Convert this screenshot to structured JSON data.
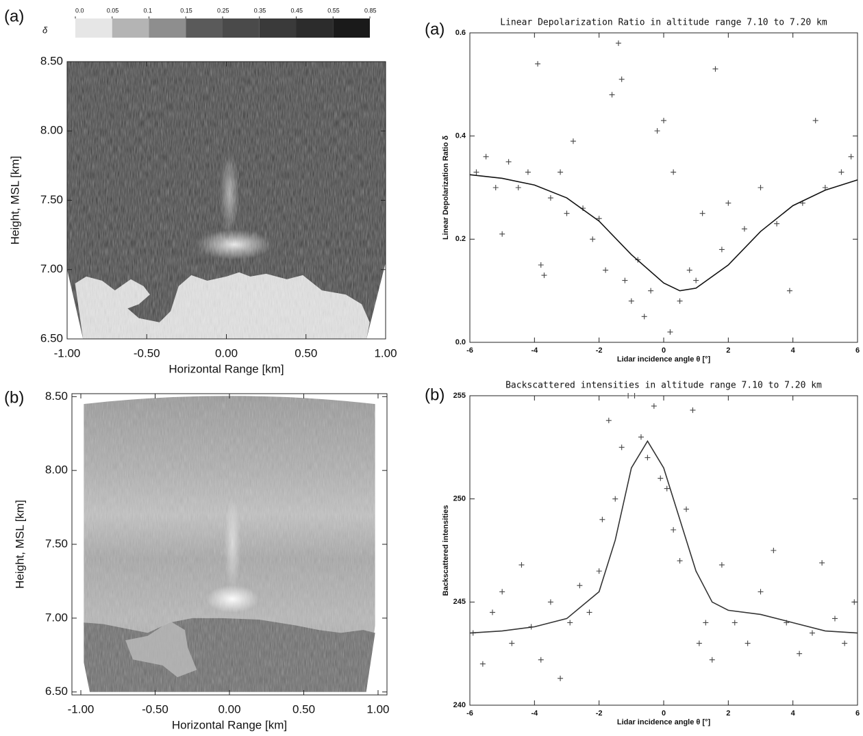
{
  "chart_data": [
    {
      "type": "image",
      "panel_label": "(a)",
      "xlabel": "Horizontal Range [km]",
      "ylabel": "Height, MSL [km]",
      "xlim": [
        -1,
        1
      ],
      "ylim": [
        6.5,
        8.5
      ],
      "xticks": [
        {
          "value": -1,
          "label": "-1.00"
        },
        {
          "value": -0.5,
          "label": "-0.50"
        },
        {
          "value": 0,
          "label": "0.00"
        },
        {
          "value": 0.5,
          "label": "0.50"
        },
        {
          "value": 1,
          "label": "1.00"
        }
      ],
      "yticks": [
        {
          "value": 6.5,
          "label": "6.50"
        },
        {
          "value": 7,
          "label": "7.00"
        },
        {
          "value": 7.5,
          "label": "7.50"
        },
        {
          "value": 8,
          "label": "8.00"
        },
        {
          "value": 8.5,
          "label": "8.50"
        }
      ],
      "colorbar": {
        "label": "δ",
        "ticks": [
          {
            "value": 0,
            "label": "0.0"
          },
          0.05,
          0.1,
          0.15,
          0.25,
          0.35,
          0.45,
          0.55,
          0.85
        ],
        "colors": [
          "#e6e6e6",
          "#b4b4b4",
          "#8e8e8e",
          "#5a5a5a",
          "#4a4a4a",
          "#3a3a3a",
          "#2c2c2c",
          "#1a1a1a"
        ]
      }
    },
    {
      "type": "image",
      "panel_label": "(b)",
      "xlabel": "Horizontal Range [km]",
      "ylabel": "Height, MSL [km]",
      "xlim": [
        -1.06,
        1.06
      ],
      "ylim": [
        6.48,
        8.52
      ],
      "xticks": [
        {
          "value": -1,
          "label": "-1.00"
        },
        {
          "value": -0.5,
          "label": "-0.50"
        },
        {
          "value": 0,
          "label": "0.00"
        },
        {
          "value": 0.5,
          "label": "0.50"
        },
        {
          "value": 1,
          "label": "1.00"
        }
      ],
      "yticks": [
        {
          "value": 6.5,
          "label": "6.50"
        },
        {
          "value": 7,
          "label": "7.00"
        },
        {
          "value": 7.5,
          "label": "7.50"
        },
        {
          "value": 8,
          "label": "8.00"
        },
        {
          "value": 8.5,
          "label": "8.50"
        }
      ]
    },
    {
      "type": "scatter",
      "panel_label": "(a)",
      "title": "Linear Depolarization Ratio in altitude range 7.10 to 7.20 km",
      "xlabel": "Lidar incidence angle  θ [°]",
      "ylabel": "Linear Depolarization Ratio  δ",
      "xlim": [
        -6,
        6
      ],
      "ylim": [
        0,
        0.6
      ],
      "xticks": [
        -6,
        -4,
        -2,
        0,
        2,
        4,
        6
      ],
      "yticks": [
        {
          "value": 0,
          "label": "0.0"
        },
        0.2,
        0.4,
        0.6
      ],
      "series": [
        {
          "style": "markers",
          "color": "#444444",
          "x": [
            -5.8,
            -5.5,
            -5.2,
            -5,
            -4.8,
            -4.5,
            -4.2,
            -3.9,
            -3.8,
            -3.7,
            -3.5,
            -3.2,
            -3,
            -2.8,
            -2.5,
            -2.2,
            -2,
            -1.8,
            -1.6,
            -1.4,
            -1.3,
            -1.2,
            -1,
            -0.8,
            -0.6,
            -0.4,
            -0.2,
            0,
            0.2,
            0.3,
            0.5,
            0.8,
            1,
            1.2,
            1.6,
            1.8,
            2,
            2.5,
            3,
            3.5,
            3.9,
            4.3,
            4.7,
            5,
            5.5,
            5.8
          ],
          "values": [
            0.33,
            0.36,
            0.3,
            0.21,
            0.35,
            0.3,
            0.33,
            0.54,
            0.15,
            0.13,
            0.28,
            0.33,
            0.25,
            0.39,
            0.26,
            0.2,
            0.24,
            0.14,
            0.48,
            0.58,
            0.51,
            0.12,
            0.08,
            0.16,
            0.05,
            0.1,
            0.41,
            0.43,
            0.02,
            0.33,
            0.08,
            0.14,
            0.12,
            0.25,
            0.53,
            0.18,
            0.27,
            0.22,
            0.3,
            0.23,
            0.1,
            0.27,
            0.43,
            0.3,
            0.33,
            0.36
          ]
        },
        {
          "style": "line",
          "color": "#111111",
          "x": [
            -6,
            -5,
            -4,
            -3,
            -2,
            -1,
            0,
            0.5,
            1,
            2,
            3,
            4,
            5,
            6
          ],
          "values": [
            0.325,
            0.318,
            0.305,
            0.28,
            0.235,
            0.17,
            0.115,
            0.1,
            0.105,
            0.15,
            0.215,
            0.265,
            0.295,
            0.315
          ]
        }
      ]
    },
    {
      "type": "scatter",
      "panel_label": "(b)",
      "title": "Backscattered intensities in altitude range 7.10 to 7.20 km",
      "xlabel": "Lidar incidence angle  θ [°]",
      "ylabel": "Backscattered intensities",
      "xlim": [
        -6,
        6
      ],
      "ylim": [
        240,
        255
      ],
      "xticks": [
        -6,
        -4,
        -2,
        0,
        2,
        4,
        6
      ],
      "yticks": [
        240,
        245,
        250,
        255
      ],
      "series": [
        {
          "style": "markers",
          "color": "#444444",
          "x": [
            -5.9,
            -5.6,
            -5.3,
            -5,
            -4.7,
            -4.4,
            -4.1,
            -3.8,
            -3.5,
            -3.2,
            -2.9,
            -2.6,
            -2.3,
            -2,
            -1.9,
            -1.7,
            -1.5,
            -1.3,
            -1.1,
            -0.9,
            -0.7,
            -0.5,
            -0.3,
            -0.1,
            0.1,
            0.3,
            0.5,
            0.7,
            0.9,
            1.1,
            1.3,
            1.5,
            1.8,
            2.2,
            2.6,
            3,
            3.4,
            3.8,
            4.2,
            4.6,
            4.9,
            5.3,
            5.6,
            5.9
          ],
          "values": [
            243.5,
            242,
            244.5,
            245.5,
            243,
            246.8,
            243.8,
            242.2,
            245,
            241.3,
            244,
            245.8,
            244.5,
            246.5,
            249,
            253.8,
            250,
            252.5,
            255,
            255,
            253,
            252,
            254.5,
            251,
            250.5,
            248.5,
            247,
            249.5,
            254.3,
            243,
            244,
            242.2,
            246.8,
            244,
            243,
            245.5,
            247.5,
            244,
            242.5,
            243.5,
            246.9,
            244.2,
            243,
            245
          ]
        },
        {
          "style": "line",
          "color": "#333333",
          "x": [
            -6,
            -5,
            -4,
            -3,
            -2,
            -1.5,
            -1,
            -0.5,
            0,
            0.5,
            1,
            1.5,
            2,
            3,
            4,
            5,
            6
          ],
          "values": [
            243.5,
            243.6,
            243.8,
            244.2,
            245.5,
            248,
            251.5,
            252.8,
            251.5,
            249,
            246.5,
            245,
            244.6,
            244.4,
            244,
            243.6,
            243.5
          ]
        }
      ]
    }
  ]
}
